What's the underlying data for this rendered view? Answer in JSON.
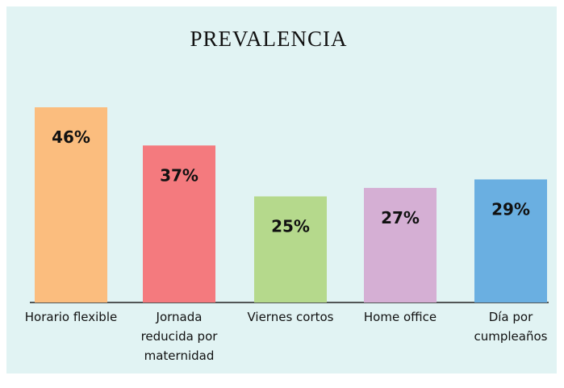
{
  "chart_data": {
    "type": "bar",
    "title": "PREVALENCIA",
    "categories": [
      "Horario flexible",
      "Jornada reducida por maternidad",
      "Viernes cortos",
      "Home office",
      "Día por cumpleaños"
    ],
    "values": [
      46,
      37,
      25,
      27,
      29
    ],
    "value_labels": [
      "46%",
      "37%",
      "25%",
      "27%",
      "29%"
    ],
    "colors": [
      "#fbbd7e",
      "#f47a7e",
      "#b5d98c",
      "#d5afd4",
      "#6aafe1"
    ]
  }
}
